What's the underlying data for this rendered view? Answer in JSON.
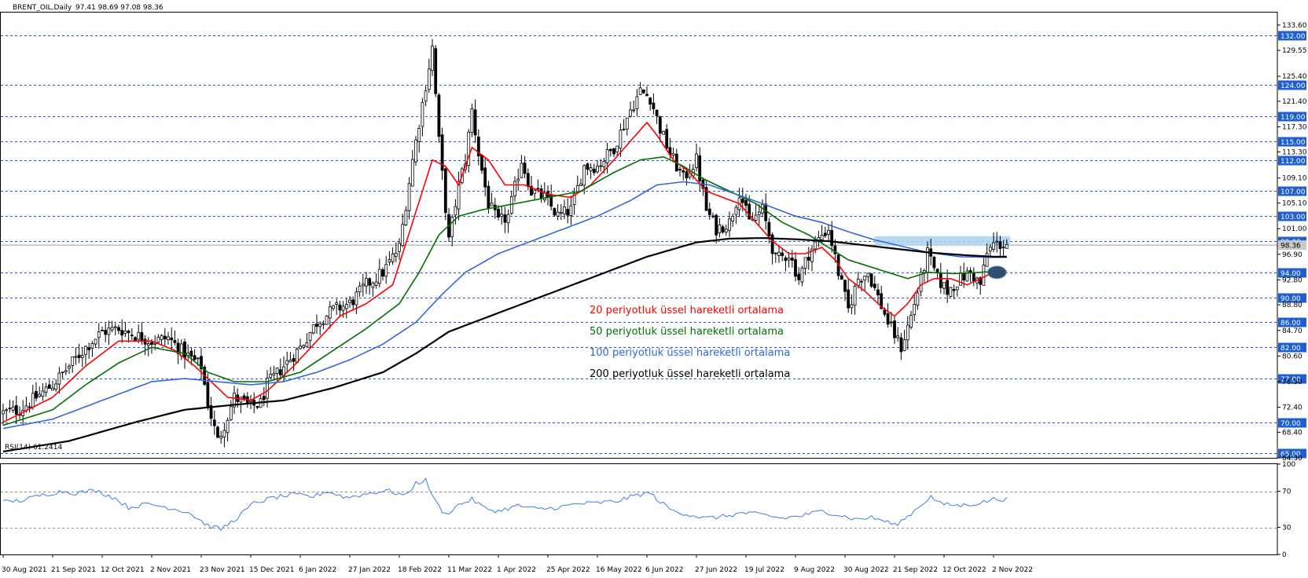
{
  "chart_data": {
    "type": "line",
    "header": {
      "symbol": "BRENT_OIL,Daily",
      "ohlc": "97.41 98.69 97.08 98.36"
    },
    "price_axis": {
      "ylim": [
        64.3,
        135.6
      ],
      "ticks": [
        "133.60",
        "129.55",
        "125.40",
        "121.40",
        "117.30",
        "113.30",
        "109.10",
        "105.10",
        "101.00",
        "96.90",
        "92.80",
        "88.80",
        "84.70",
        "80.60",
        "76.50",
        "72.40",
        "68.40",
        "64.30"
      ],
      "tick_values": [
        133.6,
        129.55,
        125.4,
        121.4,
        117.3,
        113.3,
        109.1,
        105.1,
        101.0,
        96.9,
        92.8,
        88.8,
        84.7,
        80.6,
        76.5,
        72.4,
        68.4,
        64.3
      ]
    },
    "levels": [
      {
        "label": "132.00",
        "value": 132
      },
      {
        "label": "124.00",
        "value": 124
      },
      {
        "label": "119.00",
        "value": 119
      },
      {
        "label": "115.00",
        "value": 115
      },
      {
        "label": "112.00",
        "value": 112
      },
      {
        "label": "107.00",
        "value": 107
      },
      {
        "label": "103.00",
        "value": 103
      },
      {
        "label": "99.00",
        "value": 99
      },
      {
        "label": "94.00",
        "value": 94
      },
      {
        "label": "90.00",
        "value": 90
      },
      {
        "label": "86.00",
        "value": 86
      },
      {
        "label": "82.00",
        "value": 82
      },
      {
        "label": "77.00",
        "value": 77
      },
      {
        "label": "70.00",
        "value": 70
      },
      {
        "label": "65.00",
        "value": 65
      }
    ],
    "last_price": {
      "label": "98.36",
      "value": 98.36
    },
    "x_labels": [
      "30 Aug 2021",
      "21 Sep 2021",
      "12 Oct 2021",
      "2 Nov 2021",
      "23 Nov 2021",
      "15 Dec 2021",
      "6 Jan 2022",
      "27 Jan 2022",
      "18 Feb 2022",
      "11 Mar 2022",
      "1 Apr 2022",
      "25 Apr 2022",
      "16 May 2022",
      "6 Jun 2022",
      "27 Jun 2022",
      "19 Jul 2022",
      "9 Aug 2022",
      "30 Aug 2022",
      "21 Sep 2022",
      "12 Oct 2022",
      "2 Nov 2022"
    ],
    "x_label_positions": [
      0,
      15,
      30,
      45,
      60,
      75,
      90,
      105,
      120,
      135,
      150,
      165,
      180,
      195,
      210,
      225,
      240,
      255,
      270,
      285,
      300
    ],
    "bars_count": 305,
    "price_anchors": [
      [
        0,
        71.5
      ],
      [
        5,
        72
      ],
      [
        10,
        74
      ],
      [
        15,
        76
      ],
      [
        20,
        79
      ],
      [
        25,
        82
      ],
      [
        30,
        84.5
      ],
      [
        35,
        85
      ],
      [
        40,
        84
      ],
      [
        45,
        83
      ],
      [
        50,
        83.5
      ],
      [
        55,
        81
      ],
      [
        60,
        79
      ],
      [
        62,
        73
      ],
      [
        65,
        67
      ],
      [
        68,
        71
      ],
      [
        70,
        74
      ],
      [
        75,
        72.5
      ],
      [
        78,
        73
      ],
      [
        80,
        76
      ],
      [
        85,
        79
      ],
      [
        90,
        82
      ],
      [
        95,
        86
      ],
      [
        100,
        88
      ],
      [
        105,
        89
      ],
      [
        110,
        92
      ],
      [
        115,
        94
      ],
      [
        120,
        98
      ],
      [
        124,
        112
      ],
      [
        128,
        124
      ],
      [
        130,
        130
      ],
      [
        132,
        115
      ],
      [
        135,
        99
      ],
      [
        138,
        108
      ],
      [
        140,
        112
      ],
      [
        142,
        120
      ],
      [
        144,
        113
      ],
      [
        147,
        105
      ],
      [
        150,
        102
      ],
      [
        153,
        103
      ],
      [
        157,
        112
      ],
      [
        160,
        107
      ],
      [
        164,
        106
      ],
      [
        168,
        103
      ],
      [
        172,
        104
      ],
      [
        176,
        111
      ],
      [
        180,
        111
      ],
      [
        185,
        114
      ],
      [
        190,
        120
      ],
      [
        193,
        123
      ],
      [
        196,
        122
      ],
      [
        199,
        117
      ],
      [
        202,
        113
      ],
      [
        206,
        109
      ],
      [
        210,
        112
      ],
      [
        213,
        104
      ],
      [
        216,
        101
      ],
      [
        220,
        102
      ],
      [
        223,
        107
      ],
      [
        226,
        102
      ],
      [
        230,
        104
      ],
      [
        234,
        96
      ],
      [
        238,
        97
      ],
      [
        241,
        93
      ],
      [
        244,
        97
      ],
      [
        248,
        100
      ],
      [
        250,
        101
      ],
      [
        253,
        94
      ],
      [
        256,
        88
      ],
      [
        259,
        93
      ],
      [
        262,
        94
      ],
      [
        265,
        90
      ],
      [
        268,
        86
      ],
      [
        270,
        84
      ],
      [
        272,
        82
      ],
      [
        275,
        87
      ],
      [
        278,
        93
      ],
      [
        280,
        97
      ],
      [
        283,
        93
      ],
      [
        286,
        91
      ],
      [
        290,
        93
      ],
      [
        293,
        94
      ],
      [
        296,
        92
      ],
      [
        298,
        97
      ],
      [
        300,
        98.5
      ]
    ],
    "series": [
      {
        "name": "20 periyotluk üssel hareketli ortalama",
        "color": "#ff0000",
        "width": 1.6,
        "anchors": [
          [
            0,
            70
          ],
          [
            15,
            74
          ],
          [
            25,
            79
          ],
          [
            35,
            83
          ],
          [
            45,
            83
          ],
          [
            52,
            81.5
          ],
          [
            58,
            79
          ],
          [
            62,
            77
          ],
          [
            68,
            74
          ],
          [
            75,
            73.5
          ],
          [
            80,
            75
          ],
          [
            88,
            79
          ],
          [
            95,
            83
          ],
          [
            102,
            87
          ],
          [
            110,
            89
          ],
          [
            118,
            92
          ],
          [
            124,
            102
          ],
          [
            130,
            112
          ],
          [
            134,
            111
          ],
          [
            138,
            108
          ],
          [
            142,
            114
          ],
          [
            147,
            112
          ],
          [
            152,
            108
          ],
          [
            158,
            108
          ],
          [
            165,
            106.5
          ],
          [
            172,
            106
          ],
          [
            178,
            108
          ],
          [
            185,
            112
          ],
          [
            190,
            115
          ],
          [
            195,
            118
          ],
          [
            198,
            116
          ],
          [
            203,
            112
          ],
          [
            208,
            110
          ],
          [
            213,
            107
          ],
          [
            218,
            106
          ],
          [
            223,
            105
          ],
          [
            228,
            102
          ],
          [
            233,
            99
          ],
          [
            238,
            97
          ],
          [
            243,
            97
          ],
          [
            248,
            98
          ],
          [
            252,
            96
          ],
          [
            256,
            93
          ],
          [
            261,
            91
          ],
          [
            266,
            88.5
          ],
          [
            270,
            87
          ],
          [
            274,
            89
          ],
          [
            278,
            92
          ],
          [
            282,
            93
          ],
          [
            287,
            93
          ],
          [
            292,
            92
          ],
          [
            296,
            93
          ],
          [
            300,
            94
          ]
        ]
      },
      {
        "name": "50 periyotluk üssel hareketli ortalama",
        "color": "#007000",
        "width": 1.6,
        "anchors": [
          [
            0,
            69.5
          ],
          [
            15,
            72
          ],
          [
            25,
            76
          ],
          [
            35,
            79.5
          ],
          [
            45,
            82
          ],
          [
            55,
            81
          ],
          [
            62,
            78
          ],
          [
            70,
            76.5
          ],
          [
            80,
            76.5
          ],
          [
            90,
            78
          ],
          [
            100,
            81.5
          ],
          [
            110,
            85
          ],
          [
            120,
            89
          ],
          [
            126,
            94
          ],
          [
            132,
            100
          ],
          [
            138,
            103
          ],
          [
            145,
            104
          ],
          [
            155,
            105
          ],
          [
            165,
            106
          ],
          [
            175,
            107
          ],
          [
            185,
            110
          ],
          [
            193,
            112
          ],
          [
            200,
            112.5
          ],
          [
            206,
            111
          ],
          [
            212,
            109
          ],
          [
            220,
            107
          ],
          [
            228,
            105
          ],
          [
            236,
            102
          ],
          [
            244,
            100
          ],
          [
            250,
            98
          ],
          [
            256,
            96
          ],
          [
            262,
            95
          ],
          [
            268,
            94
          ],
          [
            274,
            93
          ],
          [
            280,
            94
          ],
          [
            288,
            93.8
          ],
          [
            296,
            94
          ],
          [
            300,
            94.2
          ]
        ]
      },
      {
        "name": "100 periyotluk üssel hareketli ortalama",
        "color": "#3366dd",
        "width": 1.6,
        "anchors": [
          [
            0,
            69
          ],
          [
            15,
            70.5
          ],
          [
            30,
            73.5
          ],
          [
            45,
            76.5
          ],
          [
            55,
            77
          ],
          [
            65,
            76.5
          ],
          [
            75,
            76
          ],
          [
            85,
            76.5
          ],
          [
            95,
            78
          ],
          [
            105,
            80
          ],
          [
            115,
            82.5
          ],
          [
            125,
            86
          ],
          [
            133,
            90.5
          ],
          [
            140,
            94
          ],
          [
            150,
            97
          ],
          [
            160,
            99
          ],
          [
            170,
            101
          ],
          [
            180,
            103
          ],
          [
            190,
            105.5
          ],
          [
            198,
            108
          ],
          [
            206,
            108.5
          ],
          [
            214,
            108
          ],
          [
            222,
            106.5
          ],
          [
            230,
            105
          ],
          [
            240,
            103
          ],
          [
            248,
            102
          ],
          [
            256,
            100.5
          ],
          [
            264,
            99.2
          ],
          [
            272,
            98.2
          ],
          [
            280,
            97.2
          ],
          [
            290,
            96.5
          ],
          [
            300,
            96.4
          ]
        ]
      },
      {
        "name": "200 periyotluk üssel hareketli ortalama",
        "color": "#000000",
        "width": 2.2,
        "anchors": [
          [
            0,
            65.3
          ],
          [
            20,
            67
          ],
          [
            40,
            70
          ],
          [
            55,
            72
          ],
          [
            70,
            72.8
          ],
          [
            85,
            73.5
          ],
          [
            100,
            75.5
          ],
          [
            115,
            78
          ],
          [
            125,
            81
          ],
          [
            135,
            84.5
          ],
          [
            150,
            87.5
          ],
          [
            165,
            90.5
          ],
          [
            180,
            93.5
          ],
          [
            195,
            96.5
          ],
          [
            210,
            98.8
          ],
          [
            220,
            99.4
          ],
          [
            230,
            99.5
          ],
          [
            240,
            99.3
          ],
          [
            250,
            99
          ],
          [
            260,
            98.4
          ],
          [
            270,
            97.8
          ],
          [
            280,
            97.2
          ],
          [
            290,
            96.8
          ],
          [
            300,
            96.5
          ]
        ]
      }
    ],
    "annotations": {
      "resistance_zone": [
        98.3,
        99.8
      ],
      "ellipse_marker": {
        "x": 301,
        "y": 94
      }
    },
    "rsi": {
      "label": "RSI(14) 61.2414",
      "ylim": [
        0,
        100
      ],
      "ticks": [
        "100",
        "70",
        "30",
        "0"
      ],
      "tick_values": [
        100,
        70,
        30,
        0
      ],
      "level_lines": [
        70,
        30
      ],
      "color": "#3c80e0",
      "anchors": [
        [
          0,
          58
        ],
        [
          6,
          60
        ],
        [
          12,
          66
        ],
        [
          18,
          70
        ],
        [
          22,
          68
        ],
        [
          28,
          71
        ],
        [
          34,
          62
        ],
        [
          38,
          52
        ],
        [
          44,
          56
        ],
        [
          50,
          52
        ],
        [
          56,
          47
        ],
        [
          62,
          32
        ],
        [
          66,
          28
        ],
        [
          70,
          38
        ],
        [
          76,
          57
        ],
        [
          82,
          63
        ],
        [
          88,
          66
        ],
        [
          94,
          64
        ],
        [
          98,
          70
        ],
        [
          104,
          63
        ],
        [
          110,
          67
        ],
        [
          116,
          71
        ],
        [
          122,
          65
        ],
        [
          125,
          79
        ],
        [
          128,
          82
        ],
        [
          131,
          58
        ],
        [
          134,
          44
        ],
        [
          138,
          55
        ],
        [
          142,
          61
        ],
        [
          146,
          51
        ],
        [
          150,
          48
        ],
        [
          156,
          54
        ],
        [
          162,
          50
        ],
        [
          168,
          52
        ],
        [
          174,
          56
        ],
        [
          180,
          57
        ],
        [
          186,
          59
        ],
        [
          192,
          66
        ],
        [
          196,
          68
        ],
        [
          199,
          58
        ],
        [
          203,
          48
        ],
        [
          208,
          44
        ],
        [
          213,
          40
        ],
        [
          218,
          42
        ],
        [
          224,
          46
        ],
        [
          230,
          44
        ],
        [
          236,
          40
        ],
        [
          242,
          43
        ],
        [
          248,
          48
        ],
        [
          253,
          44
        ],
        [
          258,
          39
        ],
        [
          263,
          41
        ],
        [
          268,
          36
        ],
        [
          270,
          32
        ],
        [
          274,
          42
        ],
        [
          278,
          55
        ],
        [
          281,
          64
        ],
        [
          284,
          56
        ],
        [
          290,
          54
        ],
        [
          296,
          57
        ],
        [
          300,
          61.2
        ]
      ]
    }
  }
}
